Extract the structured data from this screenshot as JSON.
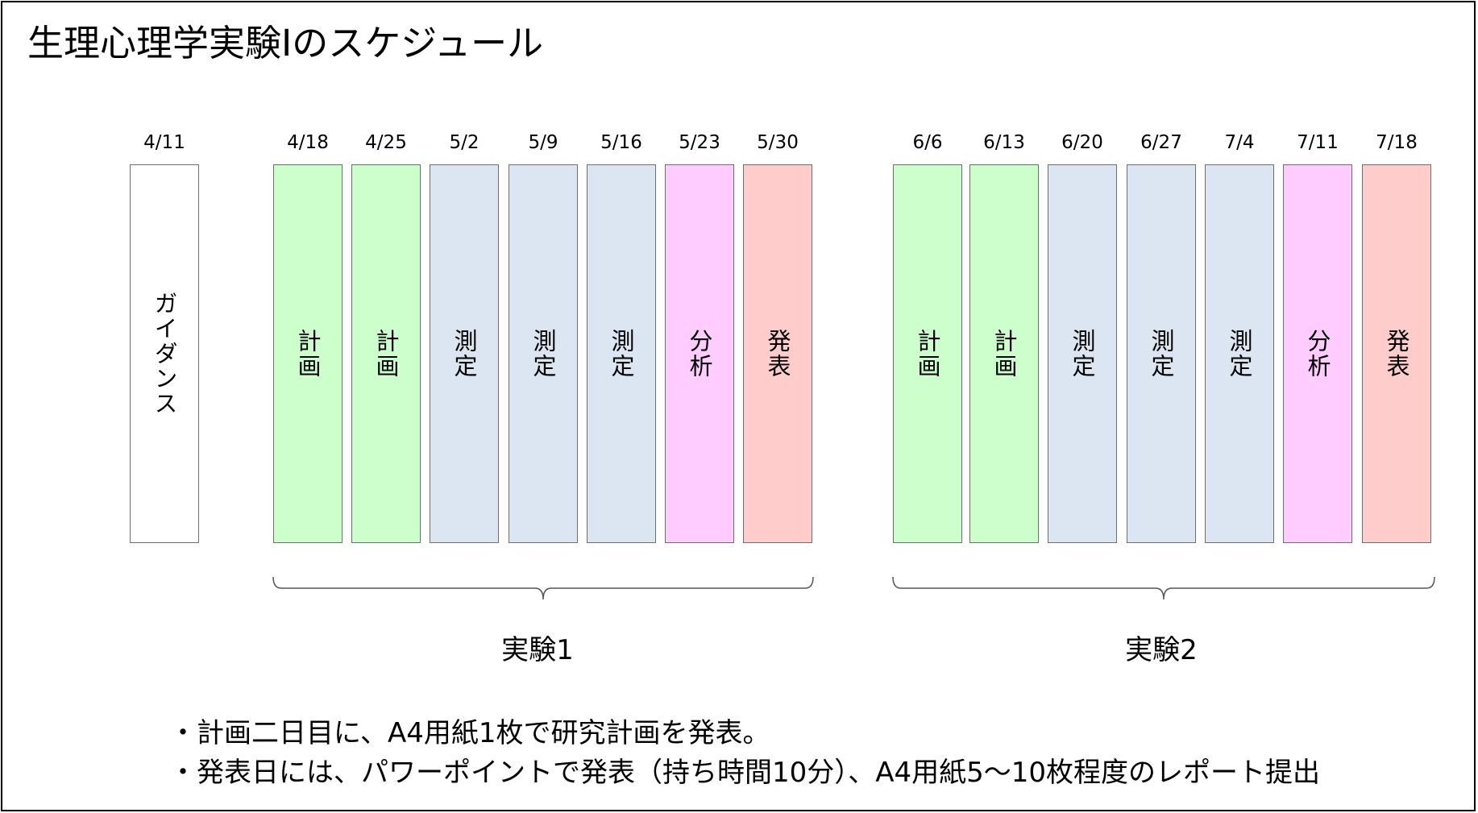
{
  "title": "生理心理学実験Ⅰのスケジュール",
  "colors": {
    "guidance": "#ffffff",
    "plan": "#ccffcc",
    "measure": "#dce6f2",
    "analysis": "#ffccff",
    "presentation": "#ffcccc"
  },
  "guidance": {
    "date": "4/11",
    "label": "ガイダンス",
    "kind": "guidance"
  },
  "experiment1": {
    "label": "実験1",
    "sessions": [
      {
        "date": "4/18",
        "label": "計画",
        "kind": "plan"
      },
      {
        "date": "4/25",
        "label": "計画",
        "kind": "plan"
      },
      {
        "date": "5/2",
        "label": "測定",
        "kind": "measure"
      },
      {
        "date": "5/9",
        "label": "測定",
        "kind": "measure"
      },
      {
        "date": "5/16",
        "label": "測定",
        "kind": "measure"
      },
      {
        "date": "5/23",
        "label": "分析",
        "kind": "analysis"
      },
      {
        "date": "5/30",
        "label": "発表",
        "kind": "presentation"
      }
    ]
  },
  "experiment2": {
    "label": "実験2",
    "sessions": [
      {
        "date": "6/6",
        "label": "計画",
        "kind": "plan"
      },
      {
        "date": "6/13",
        "label": "計画",
        "kind": "plan"
      },
      {
        "date": "6/20",
        "label": "測定",
        "kind": "measure"
      },
      {
        "date": "6/27",
        "label": "測定",
        "kind": "measure"
      },
      {
        "date": "7/4",
        "label": "測定",
        "kind": "measure"
      },
      {
        "date": "7/11",
        "label": "分析",
        "kind": "analysis"
      },
      {
        "date": "7/18",
        "label": "発表",
        "kind": "presentation"
      }
    ]
  },
  "notes": [
    "・計画二日目に、A4用紙1枚で研究計画を発表。",
    "・発表日には、パワーポイントで発表（持ち時間10分）、A4用紙5～10枚程度のレポート提出"
  ]
}
